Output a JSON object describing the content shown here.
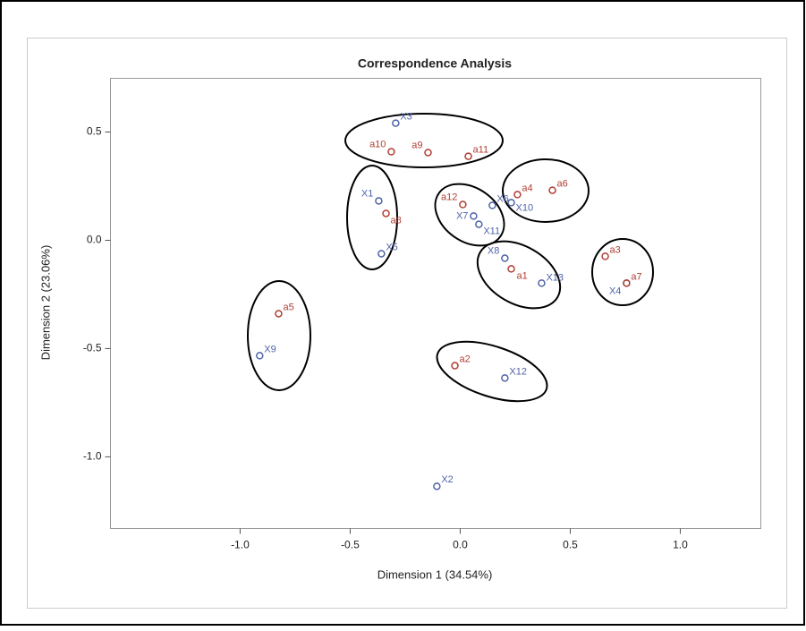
{
  "chart_data": {
    "type": "scatter",
    "title": "Correspondence Analysis",
    "x_label": "Dimension 1 (34.54%)",
    "y_label": "Dimension 2 (23.06%)",
    "xlim": [
      -1.589,
      1.366
    ],
    "ylim": [
      -1.331,
      0.748
    ],
    "xticks": [
      {
        "value": -1,
        "label": "-1.0"
      },
      -0.5,
      {
        "value": 0,
        "label": "0.0"
      },
      0.5,
      {
        "value": 1,
        "label": "1.0"
      }
    ],
    "yticks": [
      {
        "value": -1,
        "label": "-1.0"
      },
      -0.5,
      {
        "value": 0,
        "label": "0.0"
      },
      0.5
    ],
    "series": [
      {
        "color": "#4f63a8",
        "labels": [
          "X3",
          "X1",
          "X5",
          "X9",
          "X6",
          "X7",
          "X11",
          "X10",
          "X8",
          "X13",
          "X4",
          "X12",
          "X2"
        ],
        "x": [
          -0.293,
          -0.37,
          -0.358,
          -0.911,
          0.146,
          0.061,
          0.085,
          0.232,
          0.203,
          0.37,
          0.756,
          0.203,
          -0.106
        ],
        "y": [
          0.541,
          0.182,
          -0.062,
          -0.533,
          0.161,
          0.112,
          0.074,
          0.174,
          -0.083,
          -0.198,
          -0.198,
          -0.636,
          -1.136
        ]
      },
      {
        "color": "#b13f32",
        "labels": [
          "a10",
          "a9",
          "a11",
          "a12",
          "a4",
          "a6",
          "a8",
          "a1",
          "a3",
          "a7",
          "a5",
          "a2"
        ],
        "x": [
          -0.313,
          -0.146,
          0.037,
          0.012,
          0.26,
          0.419,
          -0.337,
          0.232,
          0.659,
          0.756,
          -0.825,
          -0.024
        ],
        "y": [
          0.409,
          0.405,
          0.388,
          0.165,
          0.211,
          0.231,
          0.124,
          -0.132,
          -0.074,
          -0.198,
          -0.339,
          -0.579
        ]
      }
    ]
  }
}
